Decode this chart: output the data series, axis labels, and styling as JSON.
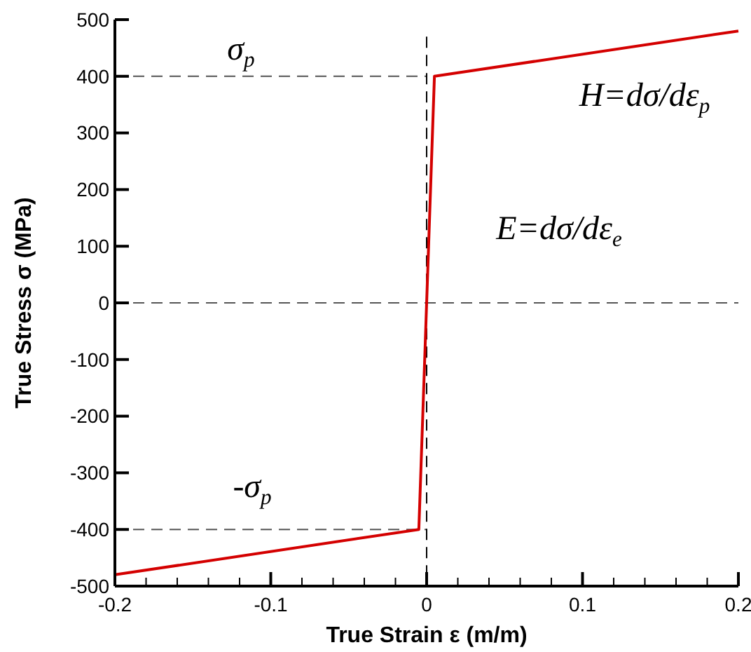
{
  "chart_data": {
    "type": "line",
    "xlabel": "True Strain ε (m/m)",
    "ylabel": "True Stress σ (MPa)",
    "x": [
      -0.2,
      -0.005,
      0.005,
      0.2
    ],
    "series": [
      {
        "color": "#d40000",
        "values": [
          -480,
          -400,
          400,
          480
        ]
      }
    ],
    "xlim": [
      -0.2,
      0.2
    ],
    "ylim": [
      -500,
      500
    ],
    "xticks": [
      -0.2,
      {
        "value": -0.18,
        "label": null
      },
      {
        "value": -0.16,
        "label": null
      },
      {
        "value": -0.14,
        "label": null
      },
      {
        "value": -0.12,
        "label": null
      },
      -0.1,
      {
        "value": -0.08,
        "label": null
      },
      {
        "value": -0.06,
        "label": null
      },
      {
        "value": -0.04,
        "label": null
      },
      {
        "value": -0.02,
        "label": null
      },
      0,
      {
        "value": 0.02,
        "label": null
      },
      {
        "value": 0.04,
        "label": null
      },
      {
        "value": 0.06,
        "label": null
      },
      {
        "value": 0.08,
        "label": null
      },
      0.1,
      {
        "value": 0.12,
        "label": null
      },
      {
        "value": 0.14,
        "label": null
      },
      {
        "value": 0.16,
        "label": null
      },
      {
        "value": 0.18,
        "label": null
      },
      0.2
    ],
    "yticks": [
      -500,
      -400,
      -300,
      -200,
      -100,
      0,
      100,
      200,
      300,
      400,
      500
    ],
    "ref_lines": [
      {
        "axis": "y",
        "value": 400,
        "line_style": "dashed"
      },
      {
        "axis": "y",
        "value": -400,
        "line_style": "dashed"
      },
      {
        "axis": "y",
        "value": 0,
        "line_style": "dashed"
      },
      {
        "axis": "x",
        "value": 0,
        "line_style": "dashed"
      }
    ],
    "annotations": [
      "σ$_{p}$",
      "-σ$_{p}$",
      "H=dσ/dε$_{p}$",
      "E=dσ/dε$_{e}$"
    ],
    "grid": false,
    "marker": "none",
    "line_style": "solid"
  }
}
